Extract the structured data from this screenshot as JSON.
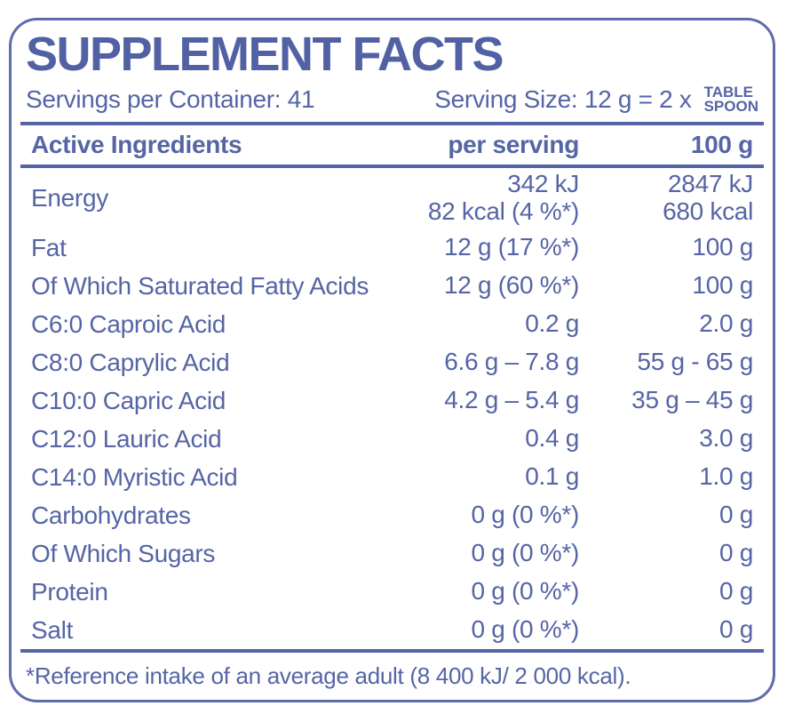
{
  "page": {
    "background_color": "#ffffff",
    "accent_color": "#5565a5",
    "border_color": "#5e6dac"
  },
  "label": {
    "title": "SUPPLEMENT FACTS",
    "servings_per_container": "Servings per Container: 41",
    "serving_size": "Serving Size: 12 g = 2 x",
    "serving_size_unit_line1": "TABLE",
    "serving_size_unit_line2": "SPOON",
    "table": {
      "columns": {
        "ingredient": "Active Ingredients",
        "per_serving": "per serving",
        "per_100g": "100 g"
      },
      "rows": [
        {
          "name": "Energy",
          "per_serving": [
            "342 kJ",
            "82 kcal (4 %*)"
          ],
          "per_100g": [
            "2847 kJ",
            "680 kcal"
          ]
        },
        {
          "name": "Fat",
          "per_serving": [
            "12 g (17 %*)"
          ],
          "per_100g": [
            "100 g"
          ]
        },
        {
          "name": "Of Which Saturated Fatty Acids",
          "per_serving": [
            "12 g (60 %*)"
          ],
          "per_100g": [
            "100 g"
          ]
        },
        {
          "name": "C6:0  Caproic Acid",
          "per_serving": [
            "0.2 g"
          ],
          "per_100g": [
            "2.0 g"
          ]
        },
        {
          "name": "C8:0 Caprylic Acid",
          "per_serving": [
            "6.6 g – 7.8 g"
          ],
          "per_100g": [
            "55 g - 65 g"
          ]
        },
        {
          "name": "C10:0 Capric Acid",
          "per_serving": [
            "4.2 g – 5.4 g"
          ],
          "per_100g": [
            "35 g – 45 g"
          ]
        },
        {
          "name": "C12:0  Lauric Acid",
          "per_serving": [
            "0.4 g"
          ],
          "per_100g": [
            "3.0 g"
          ]
        },
        {
          "name": "C14:0 Myristic Acid",
          "per_serving": [
            "0.1 g"
          ],
          "per_100g": [
            "1.0 g"
          ]
        },
        {
          "name": "Carbohydrates",
          "per_serving": [
            "0 g (0 %*)"
          ],
          "per_100g": [
            "0 g"
          ]
        },
        {
          "name": "Of Which Sugars",
          "per_serving": [
            "0 g (0 %*)"
          ],
          "per_100g": [
            "0 g"
          ]
        },
        {
          "name": "Protein",
          "per_serving": [
            "0 g (0 %*)"
          ],
          "per_100g": [
            "0 g"
          ]
        },
        {
          "name": "Salt",
          "per_serving": [
            "0 g (0 %*)"
          ],
          "per_100g": [
            "0 g"
          ]
        }
      ]
    },
    "footnote": "*Reference intake of an average adult (8 400 kJ/ 2 000 kcal)."
  }
}
